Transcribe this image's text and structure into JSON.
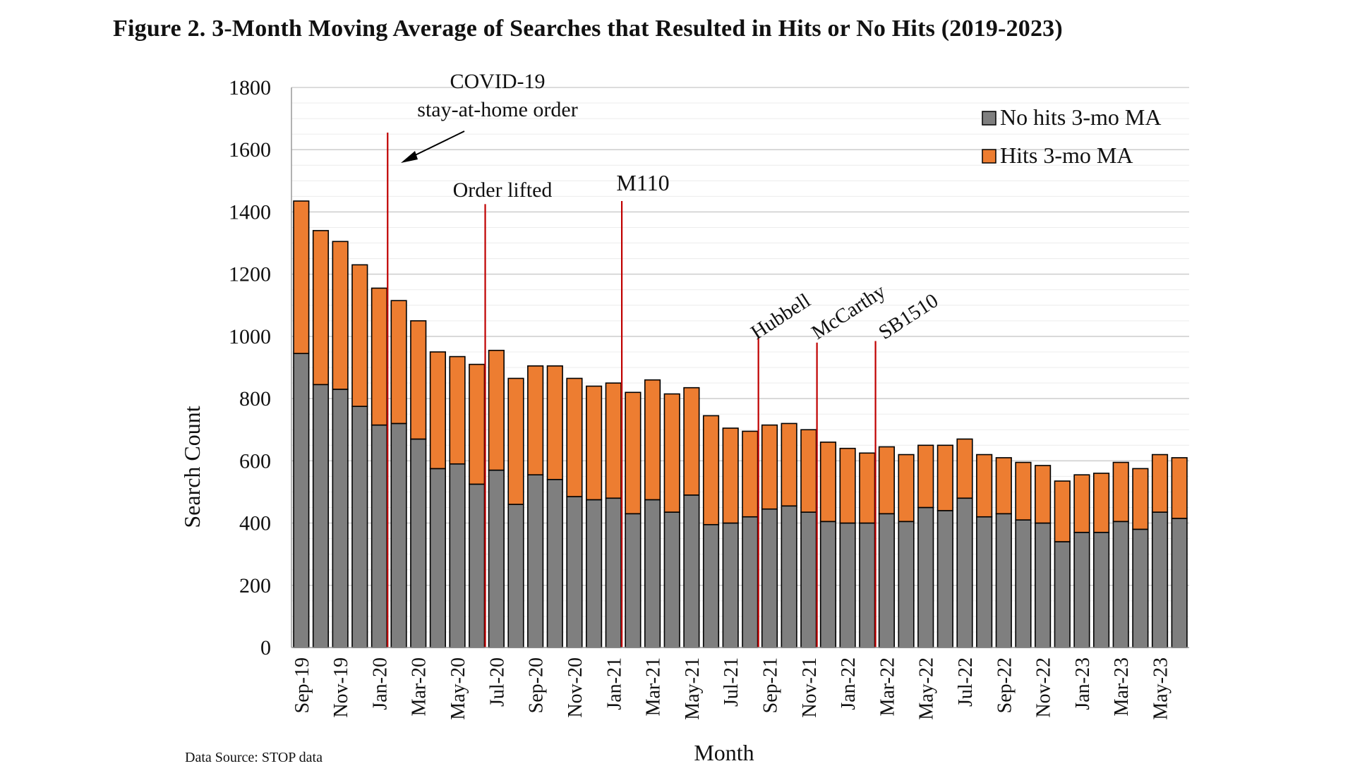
{
  "figure": {
    "title": "Figure 2. 3-Month Moving Average of Searches that Resulted in Hits or No Hits (2019-2023)",
    "source": "Data Source: STOP data"
  },
  "chart_data": {
    "type": "bar",
    "stacked": true,
    "xlabel": "Month",
    "ylabel": "Search Count",
    "ylim": [
      0,
      1800
    ],
    "yticks": [
      0,
      200,
      400,
      600,
      800,
      1000,
      1200,
      1400,
      1600,
      1800
    ],
    "grid": true,
    "legend_position": "top-right",
    "colors": {
      "no_hits": "#7f7f7f",
      "hits": "#ed7d31",
      "events": "#c00000",
      "grid": "#d9d9d9",
      "axis": "#999999"
    },
    "categories": [
      "Sep-19",
      "Oct-19",
      "Nov-19",
      "Dec-19",
      "Jan-20",
      "Feb-20",
      "Mar-20",
      "Apr-20",
      "May-20",
      "Jun-20",
      "Jul-20",
      "Aug-20",
      "Sep-20",
      "Oct-20",
      "Nov-20",
      "Dec-20",
      "Jan-21",
      "Feb-21",
      "Mar-21",
      "Apr-21",
      "May-21",
      "Jun-21",
      "Jul-21",
      "Aug-21",
      "Sep-21",
      "Oct-21",
      "Nov-21",
      "Dec-21",
      "Jan-22",
      "Feb-22",
      "Mar-22",
      "Apr-22",
      "May-22",
      "Jun-22",
      "Jul-22",
      "Aug-22",
      "Sep-22",
      "Oct-22",
      "Nov-22",
      "Dec-22",
      "Jan-23",
      "Feb-23",
      "Mar-23",
      "Apr-23",
      "May-23",
      "Jun-23"
    ],
    "tick_labels": [
      "Sep-19",
      "",
      "Nov-19",
      "",
      "Jan-20",
      "",
      "Mar-20",
      "",
      "May-20",
      "",
      "Jul-20",
      "",
      "Sep-20",
      "",
      "Nov-20",
      "",
      "Jan-21",
      "",
      "Mar-21",
      "",
      "May-21",
      "",
      "Jul-21",
      "",
      "Sep-21",
      "",
      "Nov-21",
      "",
      "Jan-22",
      "",
      "Mar-22",
      "",
      "May-22",
      "",
      "Jul-22",
      "",
      "Sep-22",
      "",
      "Nov-22",
      "",
      "Jan-23",
      "",
      "Mar-23",
      "",
      "May-23",
      ""
    ],
    "series": [
      {
        "name": "No hits 3-mo MA",
        "values": [
          945,
          845,
          830,
          775,
          715,
          720,
          670,
          575,
          590,
          525,
          570,
          460,
          555,
          540,
          485,
          475,
          480,
          430,
          475,
          435,
          490,
          395,
          400,
          420,
          445,
          455,
          435,
          405,
          400,
          400,
          430,
          405,
          450,
          440,
          480,
          420,
          430,
          410,
          400,
          340,
          370,
          370,
          405,
          380,
          435,
          415
        ]
      },
      {
        "name": "Hits 3-mo MA",
        "values": [
          490,
          495,
          475,
          455,
          440,
          395,
          380,
          375,
          345,
          385,
          385,
          405,
          350,
          365,
          380,
          365,
          370,
          390,
          385,
          380,
          345,
          350,
          305,
          275,
          270,
          265,
          265,
          255,
          240,
          225,
          215,
          215,
          200,
          210,
          190,
          200,
          180,
          185,
          185,
          195,
          185,
          190,
          190,
          195,
          185,
          195
        ]
      }
    ],
    "events": [
      {
        "label": "COVID-19 stay-at-home order",
        "line1": "COVID-19",
        "line2": "stay-at-home order",
        "index": 5,
        "top": 1655
      },
      {
        "label": "Order lifted",
        "index": 10,
        "top": 1425
      },
      {
        "label": "M110",
        "index": 17,
        "top": 1435
      },
      {
        "label": "Hubbell",
        "index": 24,
        "top": 1000
      },
      {
        "label": "McCarthy",
        "index": 27,
        "top": 980
      },
      {
        "label": "SB1510",
        "index": 30,
        "top": 985
      }
    ]
  }
}
